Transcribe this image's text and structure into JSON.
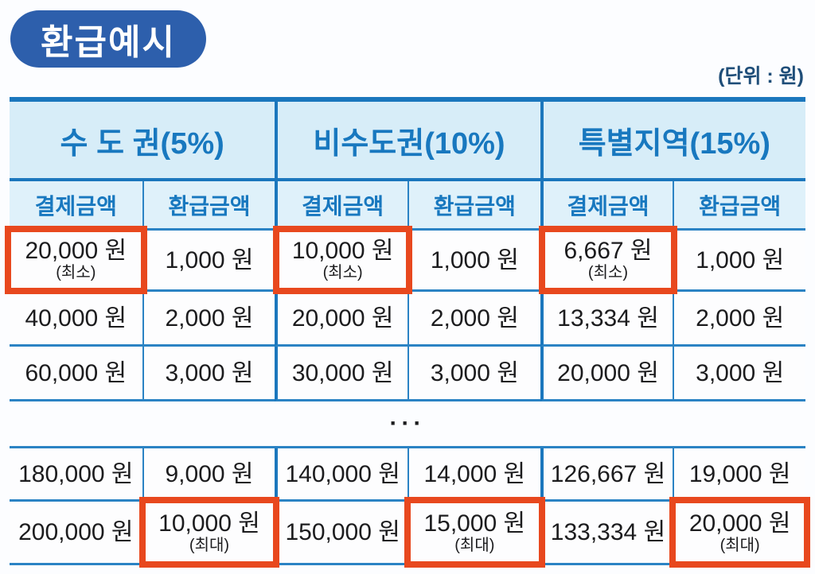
{
  "page": {
    "title_badge": "환급예시",
    "unit_label": "(단위 : 원)",
    "ellipsis": "···"
  },
  "colors": {
    "badge_blue": "#2d5fac",
    "header_text_blue": "#1878bf",
    "border_blue_thick": "#1b77bd",
    "border_blue_thin": "#2b83c4",
    "header_bg": "#d7edf8",
    "subheader_bg": "#dff1fa",
    "highlight_red": "#e8481e"
  },
  "table": {
    "groups": [
      {
        "label": "수 도 권(5%)"
      },
      {
        "label": "비수도권(10%)"
      },
      {
        "label": "특별지역(15%)"
      }
    ],
    "subheaders": [
      "결제금액",
      "환급금액",
      "결제금액",
      "환급금액",
      "결제금액",
      "환급금액"
    ],
    "rows_top": [
      {
        "cells": [
          {
            "v": "20,000 원",
            "note": "(최소)",
            "highlighted": true
          },
          {
            "v": "1,000 원"
          },
          {
            "v": "10,000 원",
            "note": "(최소)",
            "highlighted": true
          },
          {
            "v": "1,000 원"
          },
          {
            "v": "6,667 원",
            "note": "(최소)",
            "highlighted": true
          },
          {
            "v": "1,000 원"
          }
        ]
      },
      {
        "cells": [
          {
            "v": "40,000 원"
          },
          {
            "v": "2,000 원"
          },
          {
            "v": "20,000 원"
          },
          {
            "v": "2,000 원"
          },
          {
            "v": "13,334 원"
          },
          {
            "v": "2,000 원"
          }
        ]
      },
      {
        "cells": [
          {
            "v": "60,000 원"
          },
          {
            "v": "3,000 원"
          },
          {
            "v": "30,000 원"
          },
          {
            "v": "3,000 원"
          },
          {
            "v": "20,000 원"
          },
          {
            "v": "3,000 원"
          }
        ]
      }
    ],
    "rows_bottom": [
      {
        "cells": [
          {
            "v": "180,000 원"
          },
          {
            "v": "9,000 원"
          },
          {
            "v": "140,000 원"
          },
          {
            "v": "14,000 원"
          },
          {
            "v": "126,667 원"
          },
          {
            "v": "19,000 원"
          }
        ]
      },
      {
        "cells": [
          {
            "v": "200,000 원"
          },
          {
            "v": "10,000 원",
            "note": "(최대)",
            "highlighted": true
          },
          {
            "v": "150,000 원"
          },
          {
            "v": "15,000 원",
            "note": "(최대)",
            "highlighted": true
          },
          {
            "v": "133,334 원"
          },
          {
            "v": "20,000 원",
            "note": "(최대)",
            "highlighted": true
          }
        ]
      }
    ]
  }
}
